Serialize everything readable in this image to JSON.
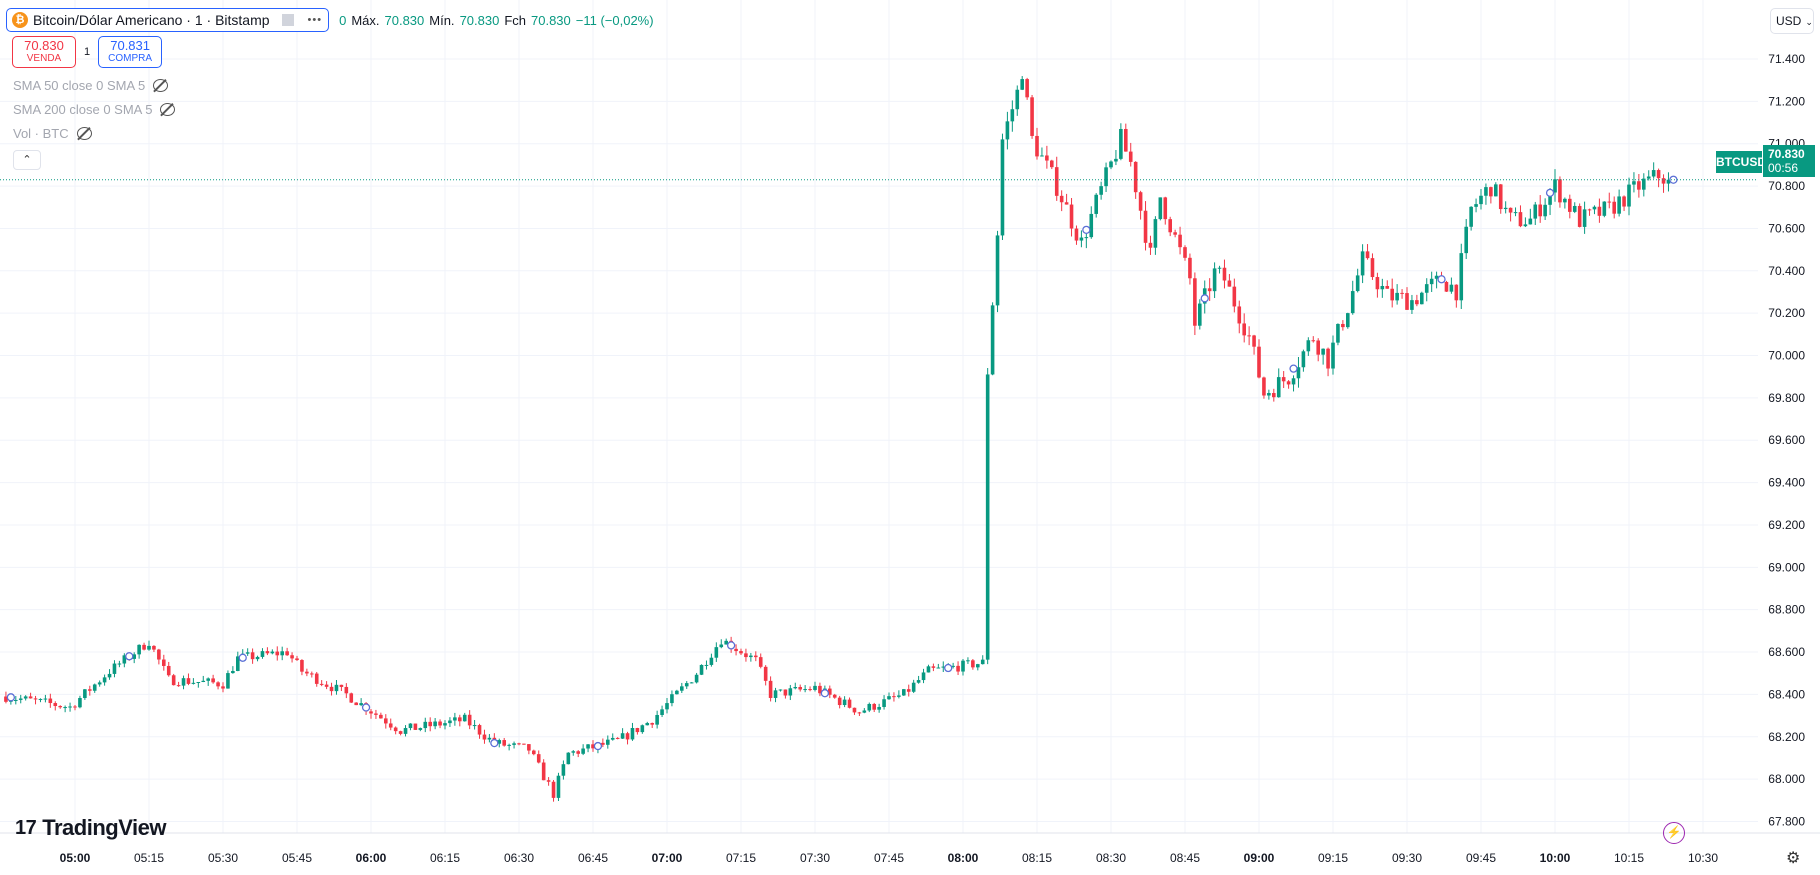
{
  "header": {
    "symbol": "Bitcoin/Dólar Americano · 1 · Bitstamp",
    "coin_glyph": "₿",
    "more": "•••",
    "o_trunc": "0",
    "high_label": "Máx.",
    "high": "70.830",
    "low_label": "Mín.",
    "low": "70.830",
    "close_label": "Fch",
    "close": "70.830",
    "change": "−11 (−0,02%)"
  },
  "trade": {
    "sell_price": "70.830",
    "sell_label": "VENDA",
    "spread": "1",
    "buy_price": "70.831",
    "buy_label": "COMPRA"
  },
  "indicators": [
    {
      "label": "SMA 50 close 0 SMA 5"
    },
    {
      "label": "SMA 200 close 0 SMA 5"
    },
    {
      "label": "Vol · BTC"
    }
  ],
  "collapse_glyph": "⌃",
  "currency": "USD",
  "last": {
    "symbol": "BTCUSD",
    "price": "70.830",
    "countdown": "00:56"
  },
  "brand": "TradingView",
  "colors": {
    "up": "#089981",
    "down": "#f23645",
    "grid": "#f0f3fa",
    "marker": "#5b6fd6"
  },
  "chart_data": {
    "type": "candlestick",
    "interval_minutes": 1,
    "y_ticks": [
      "71.400",
      "71.200",
      "71.000",
      "70.800",
      "70.600",
      "70.400",
      "70.200",
      "70.000",
      "69.800",
      "69.600",
      "69.400",
      "69.200",
      "69.000",
      "68.800",
      "68.600",
      "68.400",
      "68.200",
      "68.000",
      "67.800"
    ],
    "ylim": [
      67.76,
      71.5
    ],
    "x_ticks": [
      "05:00",
      "05:15",
      "05:30",
      "05:45",
      "06:00",
      "06:15",
      "06:30",
      "06:45",
      "07:00",
      "07:15",
      "07:30",
      "07:45",
      "08:00",
      "08:15",
      "08:30",
      "08:45",
      "09:00",
      "09:15",
      "09:30",
      "09:45",
      "10:00",
      "10:15",
      "10:30"
    ],
    "bold_ticks": [
      "05:00",
      "06:00",
      "07:00",
      "08:00",
      "09:00",
      "10:00"
    ],
    "last_price": 70.83,
    "close_path": [
      [
        "04:46",
        68.39
      ],
      [
        "04:59",
        68.34
      ],
      [
        "05:07",
        68.51
      ],
      [
        "05:15",
        68.65
      ],
      [
        "05:19",
        68.47
      ],
      [
        "05:30",
        68.45
      ],
      [
        "05:33",
        68.57
      ],
      [
        "05:43",
        68.6
      ],
      [
        "05:46",
        68.51
      ],
      [
        "05:55",
        68.4
      ],
      [
        "06:06",
        68.23
      ],
      [
        "06:19",
        68.28
      ],
      [
        "06:25",
        68.17
      ],
      [
        "06:32",
        68.14
      ],
      [
        "06:37",
        67.93
      ],
      [
        "06:40",
        68.12
      ],
      [
        "06:50",
        68.18
      ],
      [
        "06:57",
        68.28
      ],
      [
        "07:06",
        68.5
      ],
      [
        "07:11",
        68.66
      ],
      [
        "07:18",
        68.56
      ],
      [
        "07:21",
        68.4
      ],
      [
        "07:30",
        68.43
      ],
      [
        "07:39",
        68.32
      ],
      [
        "07:48",
        68.4
      ],
      [
        "07:53",
        68.51
      ],
      [
        "08:04",
        68.55
      ],
      [
        "08:05",
        69.93
      ],
      [
        "08:07",
        70.58
      ],
      [
        "08:08",
        71.02
      ],
      [
        "08:11",
        71.24
      ],
      [
        "08:12",
        71.35
      ],
      [
        "08:14",
        71.02
      ],
      [
        "08:19",
        70.8
      ],
      [
        "08:24",
        70.53
      ],
      [
        "08:27",
        70.72
      ],
      [
        "08:32",
        71.02
      ],
      [
        "08:34",
        70.91
      ],
      [
        "08:38",
        70.47
      ],
      [
        "08:40",
        70.75
      ],
      [
        "08:46",
        70.36
      ],
      [
        "08:47",
        70.15
      ],
      [
        "08:51",
        70.39
      ],
      [
        "08:53",
        70.36
      ],
      [
        "08:58",
        70.09
      ],
      [
        "09:01",
        69.82
      ],
      [
        "09:06",
        69.9
      ],
      [
        "09:11",
        70.09
      ],
      [
        "09:14",
        69.98
      ],
      [
        "09:18",
        70.23
      ],
      [
        "09:21",
        70.45
      ],
      [
        "09:26",
        70.28
      ],
      [
        "09:31",
        70.26
      ],
      [
        "09:37",
        70.36
      ],
      [
        "09:40",
        70.31
      ],
      [
        "09:43",
        70.69
      ],
      [
        "09:47",
        70.8
      ],
      [
        "09:51",
        70.64
      ],
      [
        "09:55",
        70.64
      ],
      [
        "10:00",
        70.8
      ],
      [
        "10:05",
        70.64
      ],
      [
        "10:11",
        70.69
      ],
      [
        "10:17",
        70.8
      ],
      [
        "10:21",
        70.85
      ],
      [
        "10:23",
        70.83
      ]
    ],
    "marker_times": [
      "04:47",
      "05:11",
      "05:34",
      "05:59",
      "06:25",
      "06:46",
      "07:13",
      "07:32",
      "07:57",
      "08:25",
      "08:49",
      "09:07",
      "09:37",
      "09:59",
      "10:24"
    ]
  }
}
